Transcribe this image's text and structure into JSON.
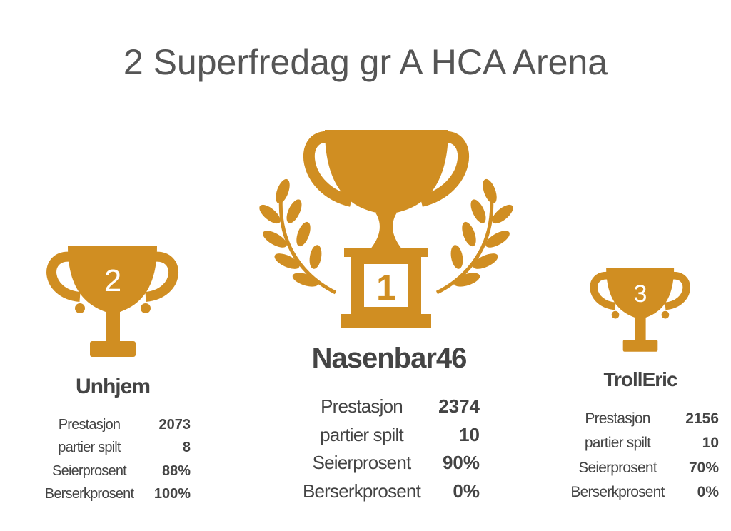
{
  "title": "2 Superfredag gr A HCA Arena",
  "podium": [
    {
      "rank": "2",
      "name": "Unhjem",
      "stats": [
        [
          "Prestasjon",
          "2073"
        ],
        [
          "partier spilt",
          "8"
        ],
        [
          "Seierprosent",
          "88%"
        ],
        [
          "Berserkprosent",
          "100%"
        ]
      ]
    },
    {
      "rank": "1",
      "name": "Nasenbar46",
      "stats": [
        [
          "Prestasjon",
          "2374"
        ],
        [
          "partier spilt",
          "10"
        ],
        [
          "Seierprosent",
          "90%"
        ],
        [
          "Berserkprosent",
          "0%"
        ]
      ]
    },
    {
      "rank": "3",
      "name": "TrollEric",
      "stats": [
        [
          "Prestasjon",
          "2156"
        ],
        [
          "partier spilt",
          "10"
        ],
        [
          "Seierprosent",
          "70%"
        ],
        [
          "Berserkprosent",
          "0%"
        ]
      ]
    }
  ]
}
